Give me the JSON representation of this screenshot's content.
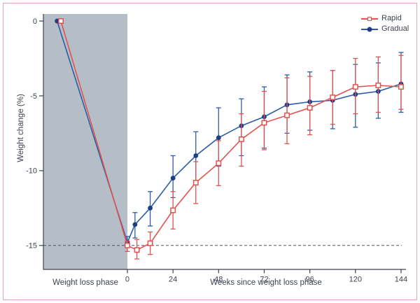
{
  "figure": {
    "border_color": "#e4aab4",
    "background_color": "#ffffff",
    "text_color": "#3d434e"
  },
  "legend": {
    "position": "top-right",
    "items": [
      {
        "label": "Rapid"
      },
      {
        "label": "Gradual"
      }
    ]
  },
  "chart_data": {
    "type": "line",
    "title": "",
    "xlabel": "Weeks since weight loss phase",
    "ylabel": "Weight change (%)",
    "grid": false,
    "legend_position": "top-right",
    "x_ticks": [
      0,
      24,
      48,
      72,
      96,
      120,
      144
    ],
    "y_ticks": [
      0,
      -5,
      -10,
      -15
    ],
    "x_domain": [
      -44.2,
      146.6
    ],
    "y_domain": [
      0.47,
      -16.6
    ],
    "reference_line": {
      "y": -15,
      "style": "dashed",
      "color": "#4d555e"
    },
    "shaded_region": {
      "label": "Weight loss phase",
      "x_range_weeks": [
        -44.2,
        0
      ],
      "color": "#b5bec7"
    },
    "axis_color": "#3d434e",
    "series": [
      {
        "name": "Rapid",
        "color": "#e2534f",
        "marker": "open-square",
        "marker_fill": "#ffffff",
        "points_note": "each point = [week, weight_change_pct, errorbar_low, errorbar_high]",
        "points": [
          [
            -35,
            0.0,
            null,
            null
          ],
          [
            0,
            -15.0,
            -15.4,
            -14.7
          ],
          [
            5,
            -15.3,
            -15.9,
            -14.6
          ],
          [
            12,
            -14.85,
            -15.6,
            -14.1
          ],
          [
            24,
            -12.65,
            -13.9,
            -11.4
          ],
          [
            36,
            -10.8,
            -12.2,
            -9.4
          ],
          [
            48,
            -9.5,
            -11.0,
            -8.0
          ],
          [
            60,
            -7.9,
            -9.7,
            -6.2
          ],
          [
            72,
            -6.8,
            -8.6,
            -4.7
          ],
          [
            84,
            -6.3,
            -8.2,
            -3.8
          ],
          [
            96,
            -5.8,
            -7.6,
            -3.7
          ],
          [
            108,
            -5.1,
            -6.9,
            -3.3
          ],
          [
            120,
            -4.4,
            -6.2,
            -2.5
          ],
          [
            132,
            -4.3,
            -6.1,
            -2.4
          ],
          [
            144,
            -4.4,
            -5.9,
            -2.3
          ]
        ]
      },
      {
        "name": "Gradual",
        "color": "#2d5da9",
        "marker": "filled-circle",
        "marker_fill": "#1c3f87",
        "points_note": "each point = [week, weight_change_pct, errorbar_low, errorbar_high]",
        "points": [
          [
            -37,
            0.0,
            null,
            null
          ],
          [
            0,
            -14.8,
            -15.1,
            -14.4
          ],
          [
            4,
            -13.6,
            -14.5,
            -12.8
          ],
          [
            12,
            -12.5,
            -13.7,
            -11.4
          ],
          [
            24,
            -10.5,
            -11.8,
            -9.0
          ],
          [
            36,
            -9.0,
            -10.7,
            -7.4
          ],
          [
            48,
            -7.8,
            -9.7,
            -5.8
          ],
          [
            60,
            -7.0,
            -9.0,
            -5.2
          ],
          [
            72,
            -6.4,
            -8.5,
            -4.4
          ],
          [
            84,
            -5.6,
            -7.5,
            -3.6
          ],
          [
            96,
            -5.4,
            -7.3,
            -3.4
          ],
          [
            108,
            -5.3,
            -7.2,
            -3.3
          ],
          [
            120,
            -4.9,
            -7.1,
            -2.9
          ],
          [
            132,
            -4.7,
            -6.5,
            -2.8
          ],
          [
            144,
            -4.2,
            -6.1,
            -2.1
          ]
        ]
      }
    ]
  }
}
